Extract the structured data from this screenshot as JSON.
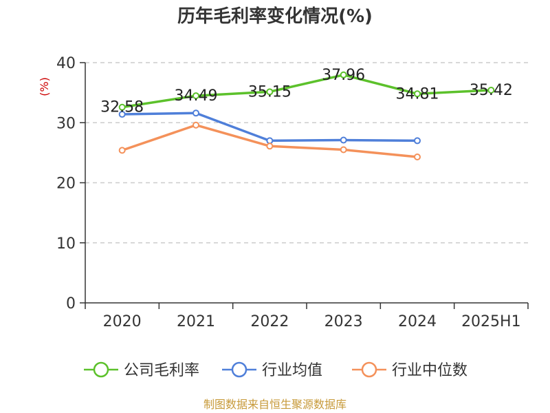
{
  "chart_data": {
    "type": "line",
    "title": "历年毛利率变化情况(%)",
    "ylabel": "(%)",
    "ylabel_color": "#cc0000",
    "xlabel": "",
    "categories": [
      "2020",
      "2021",
      "2022",
      "2023",
      "2024",
      "2025H1"
    ],
    "ylim": [
      0,
      40
    ],
    "yticks": [
      0,
      10,
      20,
      30,
      40
    ],
    "grid": true,
    "legend_position": "bottom",
    "series": [
      {
        "name": "公司毛利率",
        "color": "#5cc12b",
        "values": [
          32.58,
          34.49,
          35.15,
          37.96,
          34.81,
          35.42
        ],
        "labels": [
          "32.58",
          "34.49",
          "35.15",
          "37.96",
          "34.81",
          "35.42"
        ]
      },
      {
        "name": "行业均值",
        "color": "#4f7fd9",
        "values": [
          31.4,
          31.6,
          27.0,
          27.1,
          27.0,
          null
        ]
      },
      {
        "name": "行业中位数",
        "color": "#f4915a",
        "values": [
          25.4,
          29.6,
          26.1,
          25.5,
          24.3,
          null
        ]
      }
    ]
  },
  "footer": {
    "source_text": "制图数据来自恒生聚源数据库",
    "source_color": "#c79a3a"
  }
}
